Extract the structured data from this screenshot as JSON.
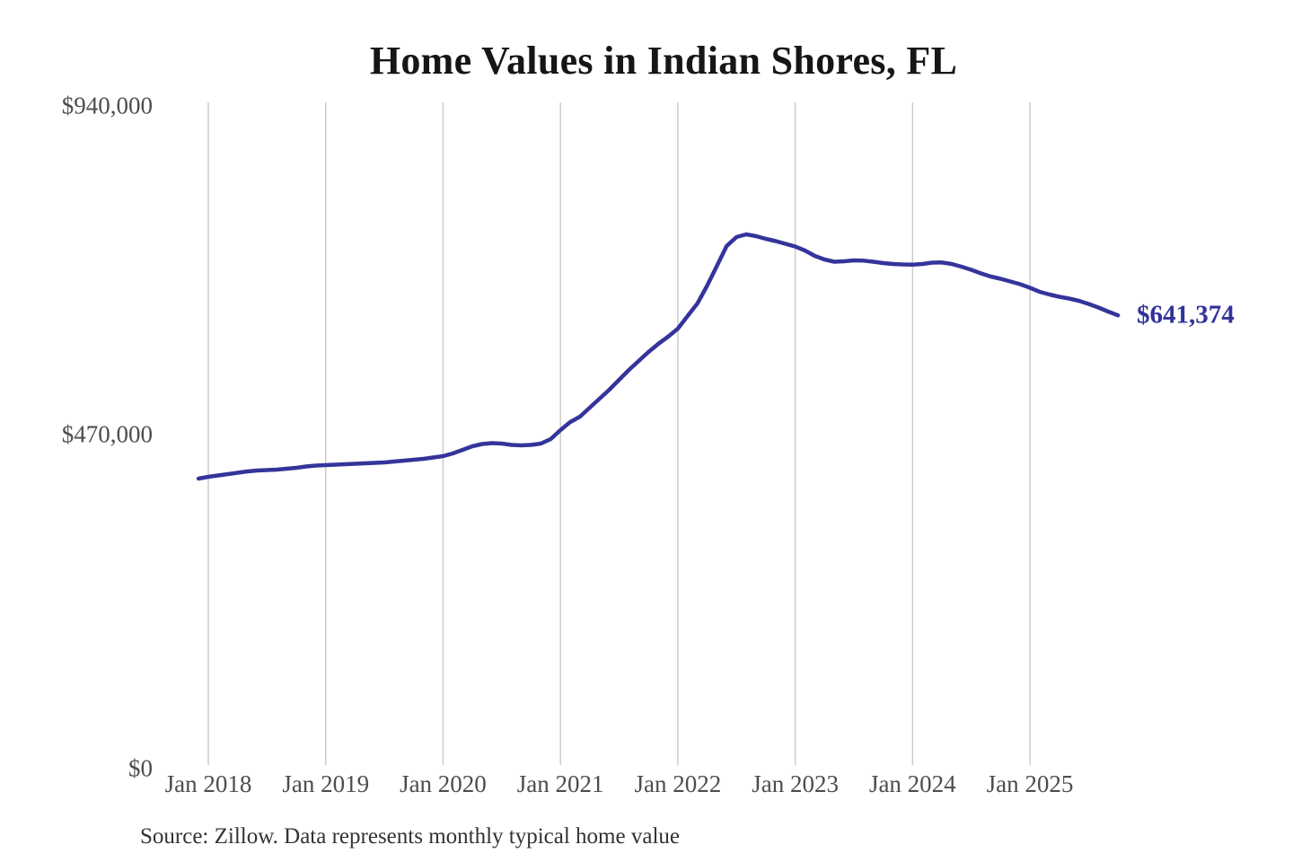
{
  "chart_data": {
    "type": "line",
    "title": "Home Values in Indian Shores, FL",
    "source_note": "Source: Zillow. Data represents monthly typical home value",
    "end_label": "$641,374",
    "series_name": "Monthly typical home value",
    "line_color": "#34349b",
    "grid_color": "#c9c9c9",
    "axis_label_color": "#4d4d4d",
    "title_color": "#161616",
    "grid": "vertical-only",
    "legend_position": "none",
    "ylim": [
      0,
      940000
    ],
    "y_ticks": [
      {
        "label": "$940,000",
        "value": 940000
      },
      {
        "label": "$470,000",
        "value": 470000
      },
      {
        "label": "$0",
        "value": 0
      }
    ],
    "x_tick_labels": [
      "Jan 2018",
      "Jan 2019",
      "Jan 2020",
      "Jan 2021",
      "Jan 2022",
      "Jan 2023",
      "Jan 2024",
      "Jan 2025"
    ],
    "months": [
      "2017-12",
      "2018-01",
      "2018-02",
      "2018-03",
      "2018-04",
      "2018-05",
      "2018-06",
      "2018-07",
      "2018-08",
      "2018-09",
      "2018-10",
      "2018-11",
      "2018-12",
      "2019-01",
      "2019-02",
      "2019-03",
      "2019-04",
      "2019-05",
      "2019-06",
      "2019-07",
      "2019-08",
      "2019-09",
      "2019-10",
      "2019-11",
      "2019-12",
      "2020-01",
      "2020-02",
      "2020-03",
      "2020-04",
      "2020-05",
      "2020-06",
      "2020-07",
      "2020-08",
      "2020-09",
      "2020-10",
      "2020-11",
      "2020-12",
      "2021-01",
      "2021-02",
      "2021-03",
      "2021-04",
      "2021-05",
      "2021-06",
      "2021-07",
      "2021-08",
      "2021-09",
      "2021-10",
      "2021-11",
      "2021-12",
      "2022-01",
      "2022-02",
      "2022-03",
      "2022-04",
      "2022-05",
      "2022-06",
      "2022-07",
      "2022-08",
      "2022-09",
      "2022-10",
      "2022-11",
      "2022-12",
      "2023-01",
      "2023-02",
      "2023-03",
      "2023-04",
      "2023-05",
      "2023-06",
      "2023-07",
      "2023-08",
      "2023-09",
      "2023-10",
      "2023-11",
      "2023-12",
      "2024-01",
      "2024-02",
      "2024-03",
      "2024-04",
      "2024-05",
      "2024-06",
      "2024-07",
      "2024-08",
      "2024-09",
      "2024-10",
      "2024-11",
      "2024-12",
      "2025-01",
      "2025-02",
      "2025-03",
      "2025-04",
      "2025-05",
      "2025-06",
      "2025-07",
      "2025-08",
      "2025-09",
      "2025-10"
    ],
    "values": [
      408500,
      411100,
      413000,
      414900,
      416900,
      418800,
      420000,
      420700,
      421300,
      422600,
      423900,
      425800,
      427100,
      427700,
      428400,
      429000,
      429600,
      430300,
      430900,
      431600,
      432800,
      434100,
      435400,
      436700,
      438600,
      440500,
      444400,
      449500,
      454600,
      457800,
      459100,
      458500,
      456500,
      455900,
      456500,
      458500,
      464900,
      477700,
      489200,
      496900,
      509700,
      522500,
      535300,
      549400,
      563500,
      576300,
      589100,
      600600,
      610900,
      622400,
      640400,
      658300,
      683900,
      712000,
      740300,
      753000,
      756900,
      754300,
      750400,
      747200,
      743400,
      739500,
      733800,
      726100,
      721000,
      717800,
      718500,
      719700,
      719400,
      717800,
      715900,
      714600,
      714000,
      713700,
      714600,
      716500,
      716800,
      714600,
      710800,
      706300,
      701200,
      696700,
      693500,
      689600,
      685800,
      680700,
      674900,
      671100,
      667900,
      665300,
      662100,
      657600,
      652500,
      646700,
      641374
    ]
  }
}
